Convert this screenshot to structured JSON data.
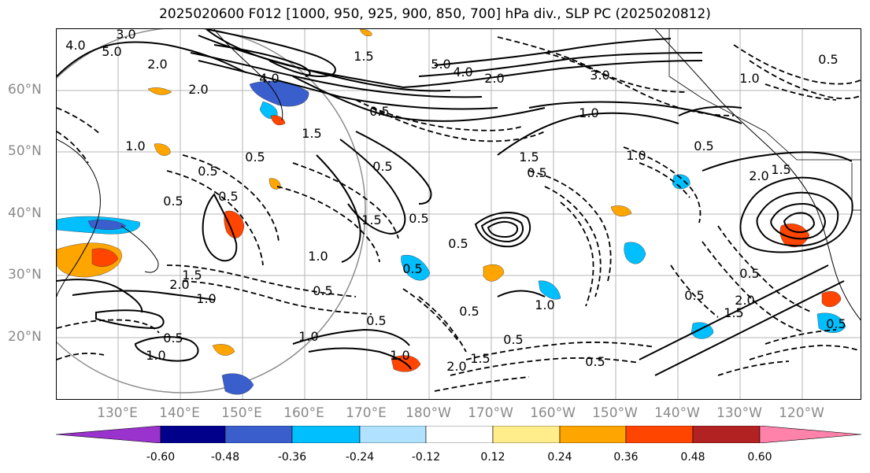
{
  "title": "2025020600 F012 [1000, 950, 925, 900, 850, 700] hPa div., SLP PC (2025020812)",
  "lat_labels": [
    "60°N",
    "50°N",
    "40°N",
    "30°N",
    "20°N"
  ],
  "lon_labels": [
    "130°E",
    "140°E",
    "150°E",
    "160°E",
    "170°E",
    "180°W",
    "170°W",
    "160°W",
    "150°W",
    "140°W",
    "130°W",
    "120°W"
  ],
  "colorbar": {
    "colors": [
      "#9a32cd",
      "#00008b",
      "#3a5fcd",
      "#00bfff",
      "#b0e2ff",
      "#ffffff",
      "#ffec8b",
      "#ffa500",
      "#ff4500",
      "#b22222",
      "#ff82ab"
    ],
    "tick_labels": [
      "-0.60",
      "-0.48",
      "-0.36",
      "-0.24",
      "-0.12",
      "0.12",
      "0.24",
      "0.36",
      "0.48",
      "0.60"
    ]
  },
  "contour_labels": [
    "3.0",
    "4.0",
    "5.0",
    "2.0",
    "4.0",
    "2.0",
    "1.5",
    "5.0",
    "4.0",
    "2.0",
    "3.0",
    "1.0",
    "0.5",
    "1.0",
    "0.5",
    "1.0",
    "1.5",
    "0.5",
    "0.5",
    "1.5",
    "0.5",
    "0.5",
    "2.0",
    "1.5",
    "0.5",
    "0.5",
    "1.5",
    "0.5",
    "0.5",
    "0.5",
    "1.0",
    "0.5",
    "1.0",
    "0.5",
    "1.5",
    "2.0",
    "1.0",
    "0.5",
    "1.0",
    "0.5",
    "1.0",
    "2.0",
    "1.5",
    "0.5",
    "0.5",
    "0.5",
    "1.0",
    "0.5",
    "0.5",
    "1.5",
    "2.0",
    "1.0",
    "0.5"
  ]
}
